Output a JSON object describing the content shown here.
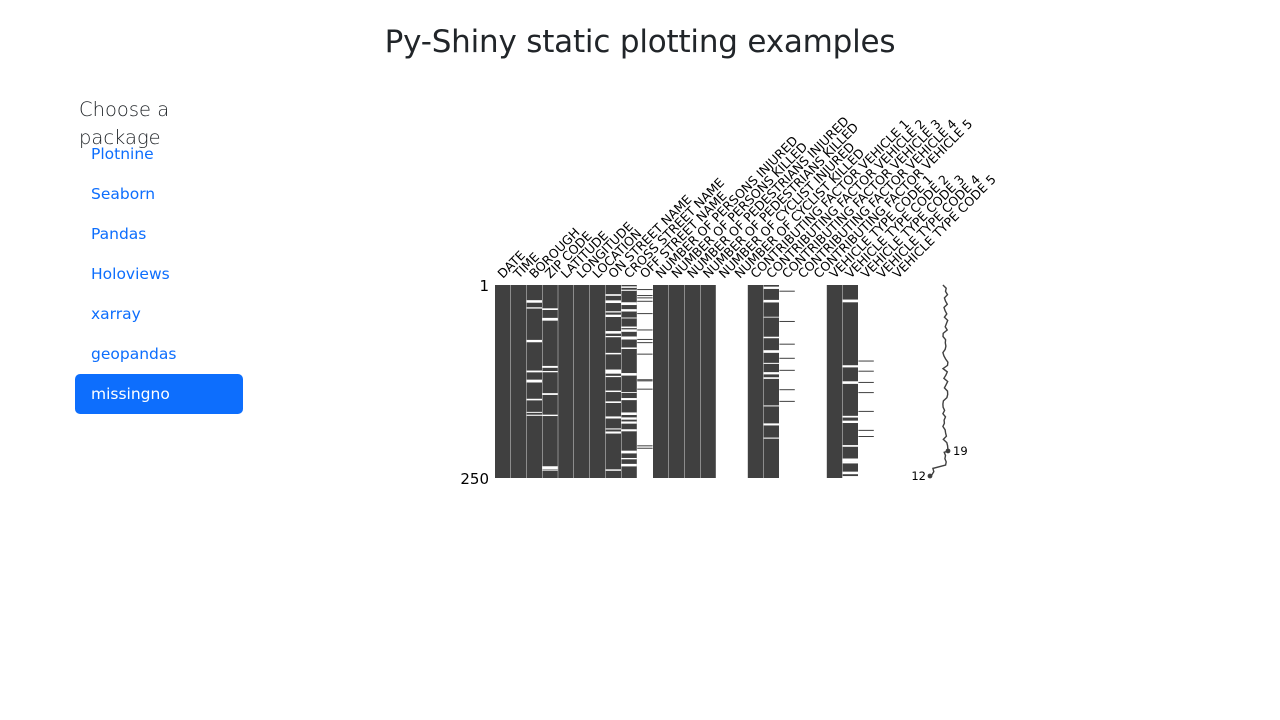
{
  "page": {
    "title": "Py-Shiny static plotting examples"
  },
  "sidebar": {
    "heading": "Choose a package",
    "items": [
      {
        "label": "Plotnine",
        "active": false
      },
      {
        "label": "Seaborn",
        "active": false
      },
      {
        "label": "Pandas",
        "active": false
      },
      {
        "label": "Holoviews",
        "active": false
      },
      {
        "label": "xarray",
        "active": false
      },
      {
        "label": "geopandas",
        "active": false
      },
      {
        "label": "missingno",
        "active": true
      }
    ]
  },
  "colors": {
    "accent": "#0d6efd",
    "bar": "#404040",
    "text": "#212529"
  },
  "chart_data": {
    "type": "heatmap",
    "description_kind": "missingno matrix",
    "row_range": [
      1,
      250
    ],
    "row_tick_labels": [
      "1",
      "250"
    ],
    "columns": [
      {
        "name": "DATE",
        "completeness": 1.0
      },
      {
        "name": "TIME",
        "completeness": 1.0
      },
      {
        "name": "BOROUGH",
        "completeness": 0.85
      },
      {
        "name": "ZIP CODE",
        "completeness": 0.85
      },
      {
        "name": "LATITUDE",
        "completeness": 1.0
      },
      {
        "name": "LONGITUDE",
        "completeness": 1.0
      },
      {
        "name": "LOCATION",
        "completeness": 1.0
      },
      {
        "name": "ON STREET NAME",
        "completeness": 0.7
      },
      {
        "name": "CROSS STREET NAME",
        "completeness": 0.65
      },
      {
        "name": "OFF STREET NAME",
        "completeness": 0.12
      },
      {
        "name": "NUMBER OF PERSONS INJURED",
        "completeness": 1.0
      },
      {
        "name": "NUMBER OF PERSONS KILLED",
        "completeness": 1.0
      },
      {
        "name": "NUMBER OF PEDESTRIANS INJURED",
        "completeness": 1.0
      },
      {
        "name": "NUMBER OF PEDESTRIANS KILLED",
        "completeness": 1.0
      },
      {
        "name": "NUMBER OF CYCLIST INJURED",
        "completeness": 0.0
      },
      {
        "name": "NUMBER OF CYCLIST KILLED",
        "completeness": 0.0
      },
      {
        "name": "CONTRIBUTING FACTOR VEHICLE 1",
        "completeness": 1.0
      },
      {
        "name": "CONTRIBUTING FACTOR VEHICLE 2",
        "completeness": 0.8
      },
      {
        "name": "CONTRIBUTING FACTOR VEHICLE 3",
        "completeness": 0.06
      },
      {
        "name": "CONTRIBUTING FACTOR VEHICLE 4",
        "completeness": 0.0
      },
      {
        "name": "CONTRIBUTING FACTOR VEHICLE 5",
        "completeness": 0.0
      },
      {
        "name": "VEHICLE TYPE CODE 1",
        "completeness": 1.0
      },
      {
        "name": "VEHICLE TYPE CODE 2",
        "completeness": 0.8
      },
      {
        "name": "VEHICLE TYPE CODE 3",
        "completeness": 0.06
      },
      {
        "name": "VEHICLE TYPE CODE 4",
        "completeness": 0.0
      },
      {
        "name": "VEHICLE TYPE CODE 5",
        "completeness": 0.0
      }
    ],
    "sparkline": {
      "max_label": "19",
      "min_label": "12",
      "max_value": 19,
      "min_value": 12
    }
  }
}
